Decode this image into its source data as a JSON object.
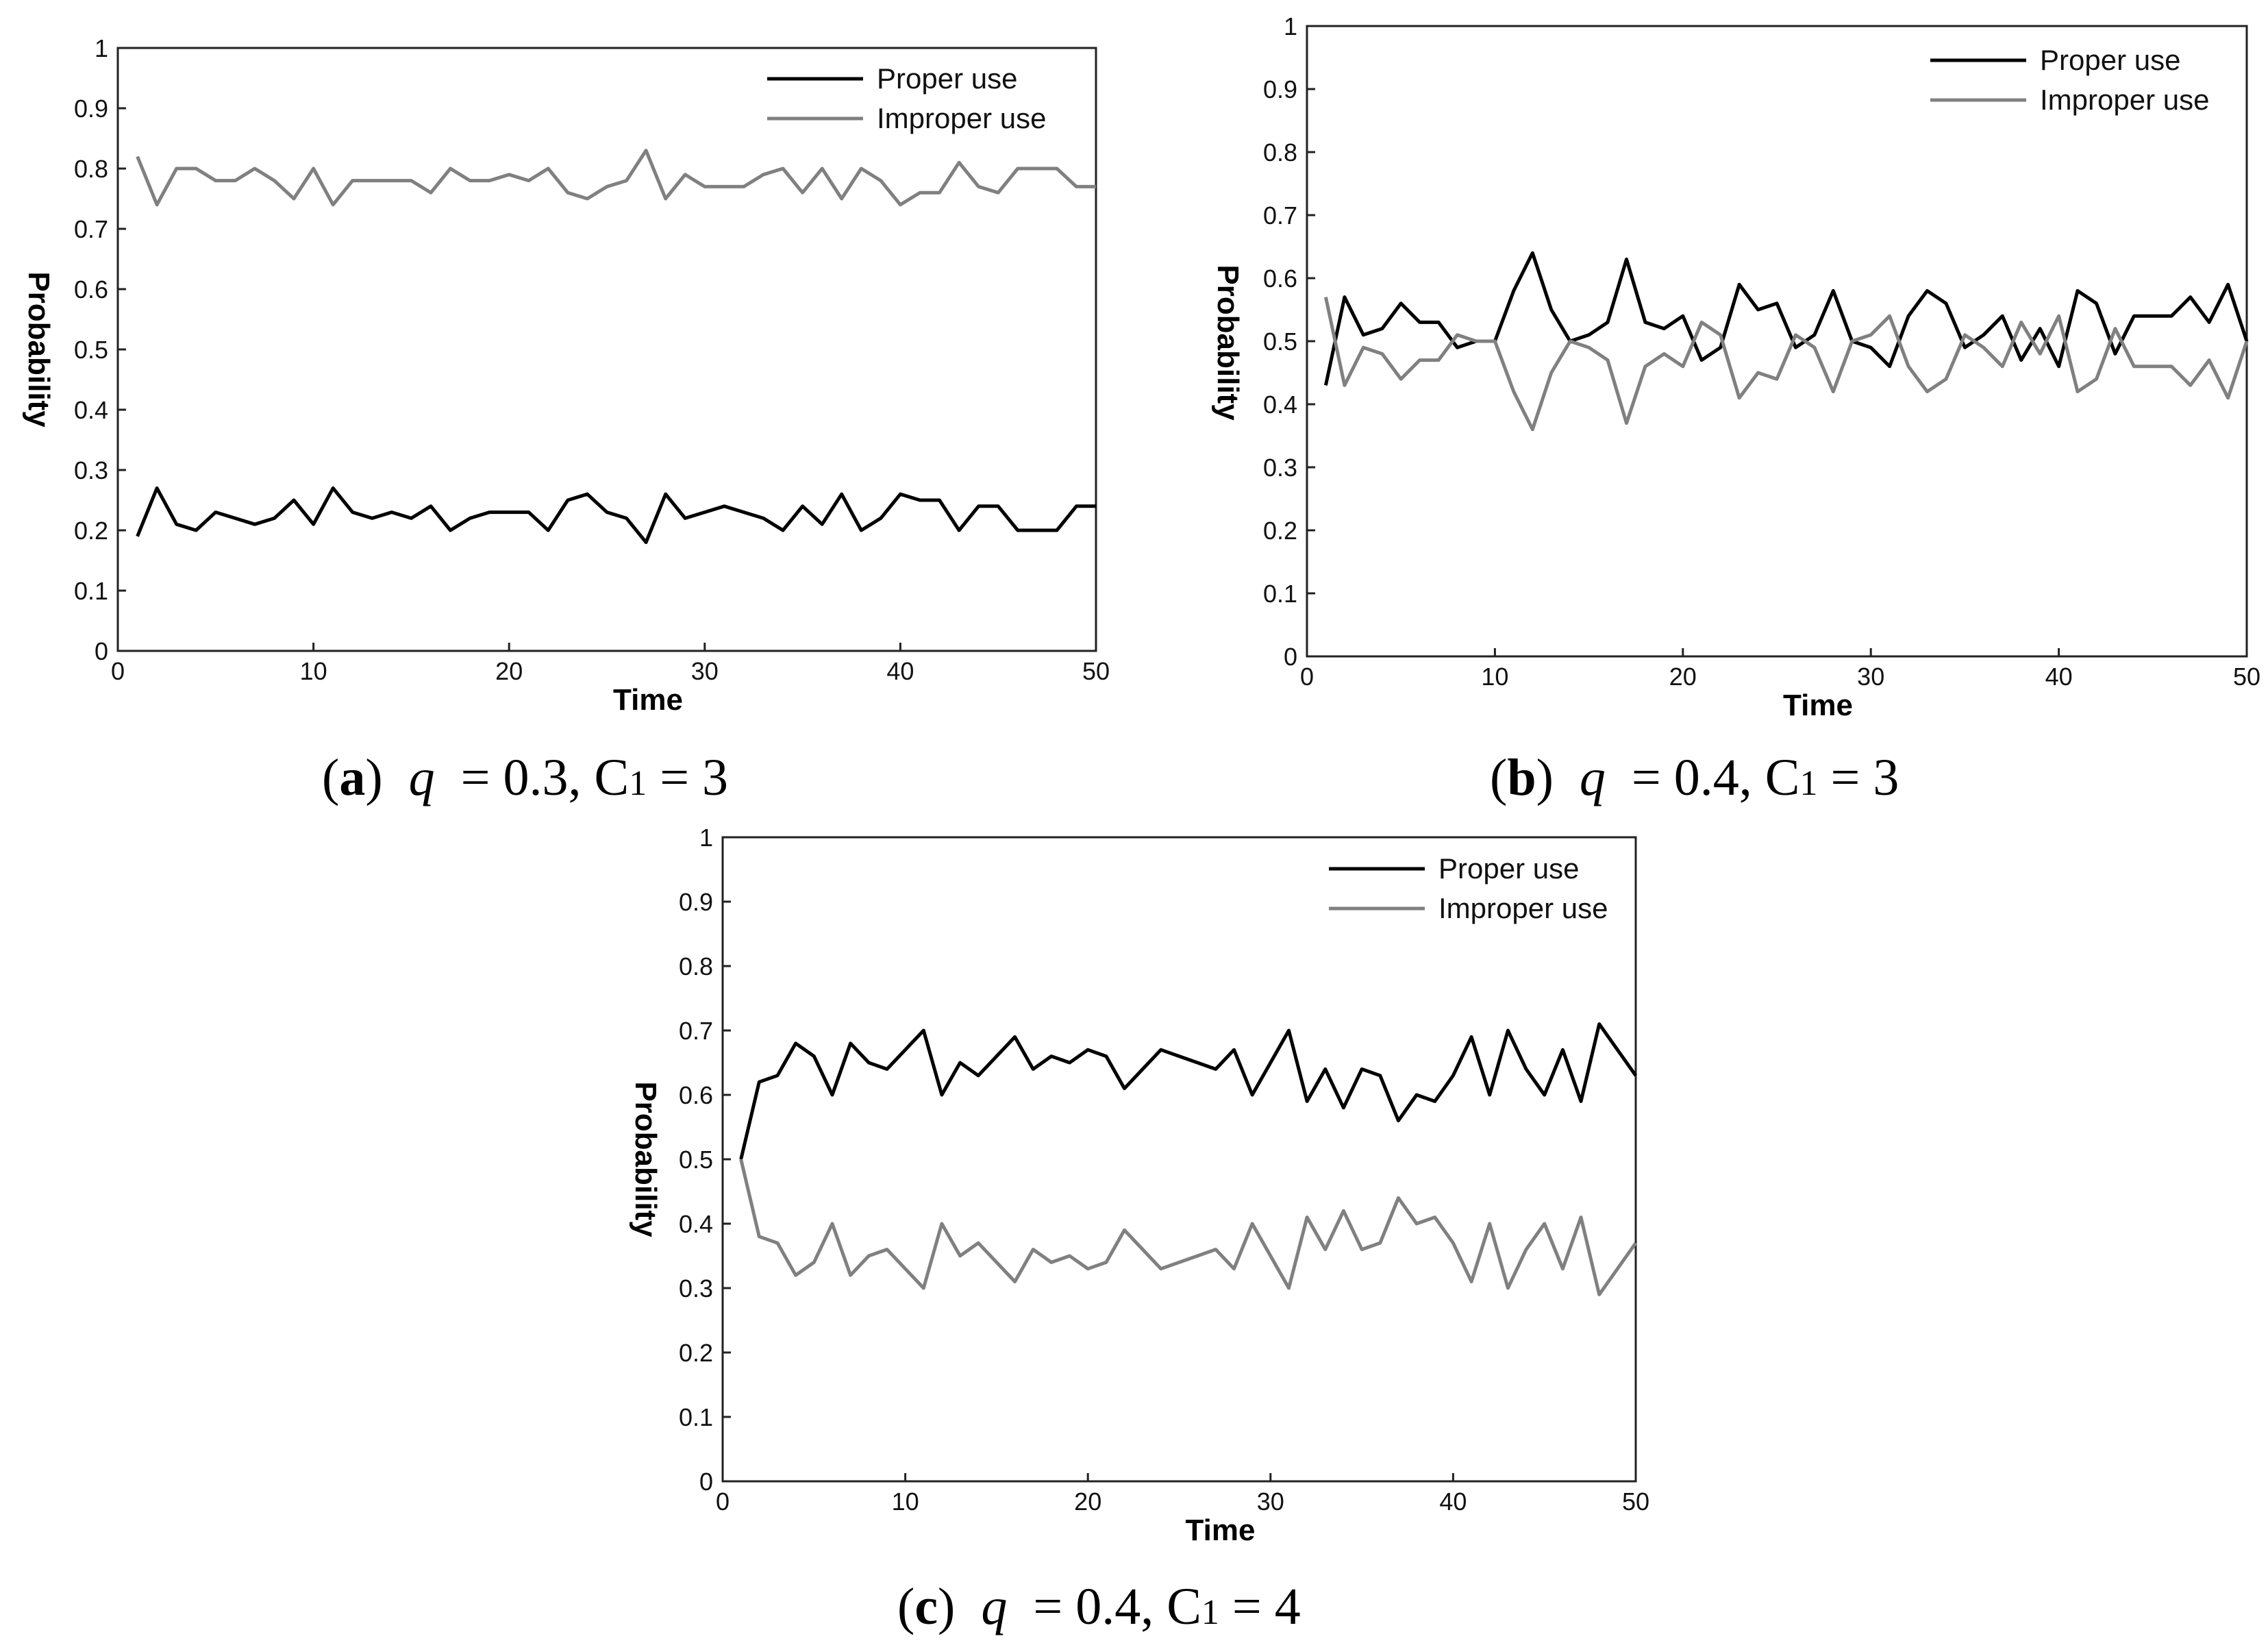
{
  "chart_data": [
    {
      "type": "line",
      "xlabel": "Time",
      "ylabel": "Probability",
      "xlim": [
        0,
        50
      ],
      "ylim": [
        0,
        1
      ],
      "xticks": [
        "0",
        "10",
        "20",
        "30",
        "40",
        "50"
      ],
      "yticks": [
        "0",
        "0.1",
        "0.2",
        "0.3",
        "0.4",
        "0.5",
        "0.6",
        "0.7",
        "0.8",
        "0.9",
        "1"
      ],
      "legend_position": "top-right",
      "caption": {
        "label": "(a)",
        "param": "q",
        "text": " = 0.3, C",
        "sub": "1",
        "tail": " = 3"
      },
      "x": [
        1,
        2,
        3,
        4,
        5,
        6,
        7,
        8,
        9,
        10,
        11,
        12,
        13,
        14,
        15,
        16,
        17,
        18,
        19,
        20,
        21,
        22,
        23,
        24,
        25,
        26,
        27,
        28,
        29,
        30,
        31,
        32,
        33,
        34,
        35,
        36,
        37,
        38,
        39,
        40,
        41,
        42,
        43,
        44,
        45,
        46,
        47,
        48,
        49,
        50
      ],
      "series": [
        {
          "name": "Proper use",
          "color": "#000000",
          "values": [
            0.19,
            0.27,
            0.21,
            0.2,
            0.23,
            0.22,
            0.21,
            0.22,
            0.25,
            0.21,
            0.27,
            0.23,
            0.22,
            0.23,
            0.22,
            0.24,
            0.2,
            0.22,
            0.23,
            0.23,
            0.23,
            0.2,
            0.25,
            0.26,
            0.23,
            0.22,
            0.18,
            0.26,
            0.22,
            0.23,
            0.24,
            0.23,
            0.22,
            0.2,
            0.24,
            0.21,
            0.26,
            0.2,
            0.22,
            0.26,
            0.25,
            0.25,
            0.2,
            0.24,
            0.24,
            0.2,
            0.2,
            0.2,
            0.24,
            0.24
          ]
        },
        {
          "name": "Improper use",
          "color": "#808080",
          "values": [
            0.82,
            0.74,
            0.8,
            0.8,
            0.78,
            0.78,
            0.8,
            0.78,
            0.75,
            0.8,
            0.74,
            0.78,
            0.78,
            0.78,
            0.78,
            0.76,
            0.8,
            0.78,
            0.78,
            0.79,
            0.78,
            0.8,
            0.76,
            0.75,
            0.77,
            0.78,
            0.83,
            0.75,
            0.79,
            0.77,
            0.77,
            0.77,
            0.79,
            0.8,
            0.76,
            0.8,
            0.75,
            0.8,
            0.78,
            0.74,
            0.76,
            0.76,
            0.81,
            0.77,
            0.76,
            0.8,
            0.8,
            0.8,
            0.77,
            0.77
          ]
        }
      ]
    },
    {
      "type": "line",
      "xlabel": "Time",
      "ylabel": "Probability",
      "xlim": [
        0,
        50
      ],
      "ylim": [
        0,
        1
      ],
      "xticks": [
        "0",
        "10",
        "20",
        "30",
        "40",
        "50"
      ],
      "yticks": [
        "0",
        "0.1",
        "0.2",
        "0.3",
        "0.4",
        "0.5",
        "0.6",
        "0.7",
        "0.8",
        "0.9",
        "1"
      ],
      "legend_position": "top-right",
      "caption": {
        "label": "(b)",
        "param": "q",
        "text": " = 0.4, C",
        "sub": "1",
        "tail": " = 3"
      },
      "x": [
        1,
        2,
        3,
        4,
        5,
        6,
        7,
        8,
        9,
        10,
        11,
        12,
        13,
        14,
        15,
        16,
        17,
        18,
        19,
        20,
        21,
        22,
        23,
        24,
        25,
        26,
        27,
        28,
        29,
        30,
        31,
        32,
        33,
        34,
        35,
        36,
        37,
        38,
        39,
        40,
        41,
        42,
        43,
        44,
        45,
        46,
        47,
        48,
        49,
        50
      ],
      "series": [
        {
          "name": "Proper use",
          "color": "#000000",
          "values": [
            0.43,
            0.57,
            0.51,
            0.52,
            0.56,
            0.53,
            0.53,
            0.49,
            0.5,
            0.5,
            0.58,
            0.64,
            0.55,
            0.5,
            0.51,
            0.53,
            0.63,
            0.53,
            0.52,
            0.54,
            0.47,
            0.49,
            0.59,
            0.55,
            0.56,
            0.49,
            0.51,
            0.58,
            0.5,
            0.49,
            0.46,
            0.54,
            0.58,
            0.56,
            0.49,
            0.51,
            0.54,
            0.47,
            0.52,
            0.46,
            0.58,
            0.56,
            0.48,
            0.54,
            0.54,
            0.54,
            0.57,
            0.53,
            0.59,
            0.5
          ]
        },
        {
          "name": "Improper use",
          "color": "#808080",
          "values": [
            0.57,
            0.43,
            0.49,
            0.48,
            0.44,
            0.47,
            0.47,
            0.51,
            0.5,
            0.5,
            0.42,
            0.36,
            0.45,
            0.5,
            0.49,
            0.47,
            0.37,
            0.46,
            0.48,
            0.46,
            0.53,
            0.51,
            0.41,
            0.45,
            0.44,
            0.51,
            0.49,
            0.42,
            0.5,
            0.51,
            0.54,
            0.46,
            0.42,
            0.44,
            0.51,
            0.49,
            0.46,
            0.53,
            0.48,
            0.54,
            0.42,
            0.44,
            0.52,
            0.46,
            0.46,
            0.46,
            0.43,
            0.47,
            0.41,
            0.5
          ]
        }
      ]
    },
    {
      "type": "line",
      "xlabel": "Time",
      "ylabel": "Probability",
      "xlim": [
        0,
        50
      ],
      "ylim": [
        0,
        1
      ],
      "xticks": [
        "0",
        "10",
        "20",
        "30",
        "40",
        "50"
      ],
      "yticks": [
        "0",
        "0.1",
        "0.2",
        "0.3",
        "0.4",
        "0.5",
        "0.6",
        "0.7",
        "0.8",
        "0.9",
        "1"
      ],
      "legend_position": "top-right",
      "caption": {
        "label": "(c)",
        "param": "q",
        "text": " = 0.4, C",
        "sub": "1",
        "tail": " = 4"
      },
      "x": [
        1,
        2,
        3,
        4,
        5,
        6,
        7,
        8,
        9,
        10,
        11,
        12,
        13,
        14,
        15,
        16,
        17,
        18,
        19,
        20,
        21,
        22,
        23,
        24,
        25,
        26,
        27,
        28,
        29,
        30,
        31,
        32,
        33,
        34,
        35,
        36,
        37,
        38,
        39,
        40,
        41,
        42,
        43,
        44,
        45,
        46,
        47,
        48,
        49,
        50
      ],
      "series": [
        {
          "name": "Proper use",
          "color": "#000000",
          "values": [
            0.5,
            0.62,
            0.63,
            0.68,
            0.66,
            0.6,
            0.68,
            0.65,
            0.64,
            0.67,
            0.7,
            0.6,
            0.65,
            0.63,
            0.66,
            0.69,
            0.64,
            0.66,
            0.65,
            0.67,
            0.66,
            0.61,
            0.64,
            0.67,
            0.66,
            0.65,
            0.64,
            0.67,
            0.6,
            0.65,
            0.7,
            0.59,
            0.64,
            0.58,
            0.64,
            0.63,
            0.56,
            0.6,
            0.59,
            0.63,
            0.69,
            0.6,
            0.7,
            0.64,
            0.6,
            0.67,
            0.59,
            0.71,
            0.67,
            0.63
          ]
        },
        {
          "name": "Improper use",
          "color": "#808080",
          "values": [
            0.5,
            0.38,
            0.37,
            0.32,
            0.34,
            0.4,
            0.32,
            0.35,
            0.36,
            0.33,
            0.3,
            0.4,
            0.35,
            0.37,
            0.34,
            0.31,
            0.36,
            0.34,
            0.35,
            0.33,
            0.34,
            0.39,
            0.36,
            0.33,
            0.34,
            0.35,
            0.36,
            0.33,
            0.4,
            0.35,
            0.3,
            0.41,
            0.36,
            0.42,
            0.36,
            0.37,
            0.44,
            0.4,
            0.41,
            0.37,
            0.31,
            0.4,
            0.3,
            0.36,
            0.4,
            0.33,
            0.41,
            0.29,
            0.33,
            0.37
          ]
        }
      ]
    }
  ]
}
